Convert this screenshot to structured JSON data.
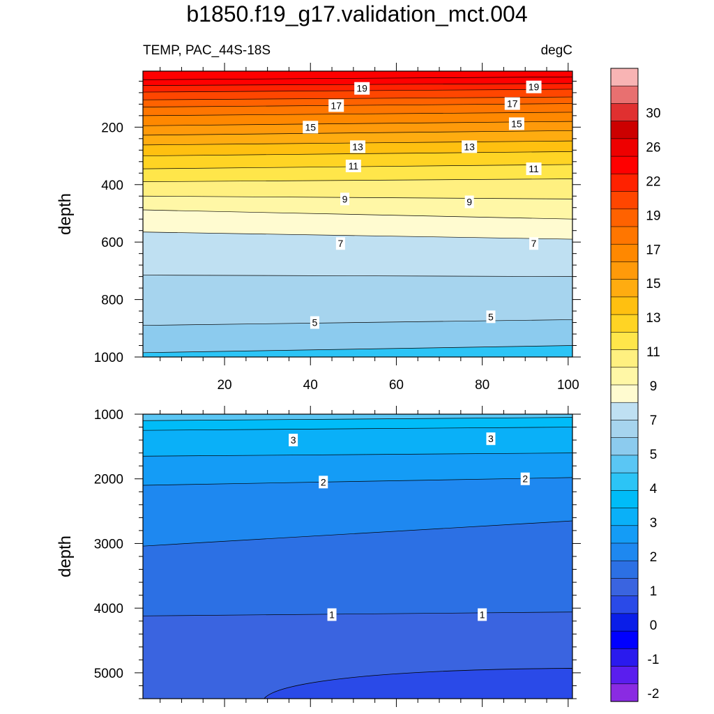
{
  "title": "b1850.f19_g17.validation_mct.004",
  "subtitle_left": "TEMP, PAC_44S-18S",
  "subtitle_right": "degC",
  "colors": {
    "levels": [
      -2,
      -1.5,
      -1,
      -0.5,
      0,
      0.5,
      1,
      1.5,
      2,
      2.5,
      3,
      3.5,
      4,
      4.5,
      5,
      6,
      7,
      8,
      9,
      10,
      11,
      12,
      13,
      14,
      15,
      16,
      17,
      18,
      19,
      20,
      22,
      24,
      26,
      28,
      30
    ],
    "fills": [
      "#8a2be2",
      "#5a1eee",
      "#2a1aee",
      "#0000ff",
      "#0a1ee8",
      "#2a4ae8",
      "#3a64e0",
      "#2c70e4",
      "#1e88f0",
      "#149cf6",
      "#0ab0f8",
      "#00bcf8",
      "#2cc4f6",
      "#5ac6f4",
      "#8ccbee",
      "#a6d4ee",
      "#bfe0f2",
      "#fffbd0",
      "#fff7a6",
      "#fff080",
      "#ffe64a",
      "#ffd424",
      "#ffc010",
      "#ffac10",
      "#ff9a0a",
      "#ff8800",
      "#ff7600",
      "#ff6200",
      "#ff4600",
      "#ff2200",
      "#ff0000",
      "#ee0000",
      "#cc0000",
      "#e03030",
      "#e87070",
      "#f8b4b4"
    ]
  },
  "chart_data": [
    {
      "type": "contour",
      "panel": "upper",
      "field": "TEMP",
      "units": "degC",
      "ylabel": "depth",
      "xlim": [
        1,
        101
      ],
      "ylim": [
        1000,
        5
      ],
      "x_ticks": [
        20,
        40,
        60,
        80,
        100
      ],
      "y_ticks": [
        200,
        400,
        600,
        800,
        1000
      ],
      "contour_depths": [
        {
          "level": 21,
          "left": 35,
          "right": 25
        },
        {
          "level": 20,
          "left": 55,
          "right": 48
        },
        {
          "level": 19,
          "left": 78,
          "right": 68
        },
        {
          "level": 18,
          "left": 105,
          "right": 95
        },
        {
          "level": 17,
          "left": 130,
          "right": 118
        },
        {
          "level": 16,
          "left": 160,
          "right": 148
        },
        {
          "level": 15,
          "left": 195,
          "right": 180
        },
        {
          "level": 14,
          "left": 228,
          "right": 212
        },
        {
          "level": 13,
          "left": 262,
          "right": 248
        },
        {
          "level": 12,
          "left": 300,
          "right": 285
        },
        {
          "level": 11,
          "left": 345,
          "right": 330
        },
        {
          "level": 10,
          "left": 390,
          "right": 380
        },
        {
          "level": 9,
          "left": 440,
          "right": 450
        },
        {
          "level": 8,
          "left": 488,
          "right": 520
        },
        {
          "level": 7,
          "left": 565,
          "right": 590
        },
        {
          "level": 6,
          "left": 715,
          "right": 720
        },
        {
          "level": 5,
          "left": 890,
          "right": 870
        },
        {
          "level": 4,
          "left": 985,
          "right": 960
        }
      ],
      "contour_labels": [
        {
          "text": "19",
          "x": 52,
          "depth": 65
        },
        {
          "text": "19",
          "x": 92,
          "depth": 60
        },
        {
          "text": "17",
          "x": 46,
          "depth": 125
        },
        {
          "text": "17",
          "x": 87,
          "depth": 118
        },
        {
          "text": "15",
          "x": 40,
          "depth": 200
        },
        {
          "text": "15",
          "x": 88,
          "depth": 188
        },
        {
          "text": "13",
          "x": 51,
          "depth": 268
        },
        {
          "text": "13",
          "x": 77,
          "depth": 268
        },
        {
          "text": "11",
          "x": 50,
          "depth": 335
        },
        {
          "text": "11",
          "x": 92,
          "depth": 345
        },
        {
          "text": "9",
          "x": 48,
          "depth": 450
        },
        {
          "text": "9",
          "x": 77,
          "depth": 460
        },
        {
          "text": "7",
          "x": 47,
          "depth": 605
        },
        {
          "text": "7",
          "x": 92,
          "depth": 605
        },
        {
          "text": "5",
          "x": 41,
          "depth": 880
        },
        {
          "text": "5",
          "x": 82,
          "depth": 860
        }
      ]
    },
    {
      "type": "contour",
      "panel": "lower",
      "field": "TEMP",
      "units": "degC",
      "ylabel": "depth",
      "xlim": [
        1,
        101
      ],
      "ylim": [
        5400,
        1000
      ],
      "y_ticks": [
        1000,
        2000,
        3000,
        4000,
        5000
      ],
      "contour_depths": [
        {
          "level": 3.5,
          "left": 1100,
          "right": 1050
        },
        {
          "level": 3,
          "left": 1250,
          "right": 1200
        },
        {
          "level": 2.5,
          "left": 1650,
          "right": 1600
        },
        {
          "level": 2,
          "left": 2100,
          "right": 1980
        },
        {
          "level": 1.5,
          "left": 3040,
          "right": 2650
        },
        {
          "level": 1,
          "left": 4120,
          "right": 4060
        }
      ],
      "contour_labels": [
        {
          "text": "3",
          "x": 36,
          "depth": 1400
        },
        {
          "text": "3",
          "x": 82,
          "depth": 1380
        },
        {
          "text": "2",
          "x": 43,
          "depth": 2050
        },
        {
          "text": "2",
          "x": 90,
          "depth": 2000
        },
        {
          "text": "1",
          "x": 45,
          "depth": 4100
        },
        {
          "text": "1",
          "x": 80,
          "depth": 4100
        }
      ],
      "cold_region_level": 0.5
    }
  ],
  "colorbar": {
    "tick_labels": [
      "30",
      "26",
      "22",
      "19",
      "17",
      "15",
      "13",
      "11",
      "9",
      "7",
      "5",
      "4",
      "3",
      "2",
      "1",
      "0",
      "-1",
      "-2"
    ]
  }
}
